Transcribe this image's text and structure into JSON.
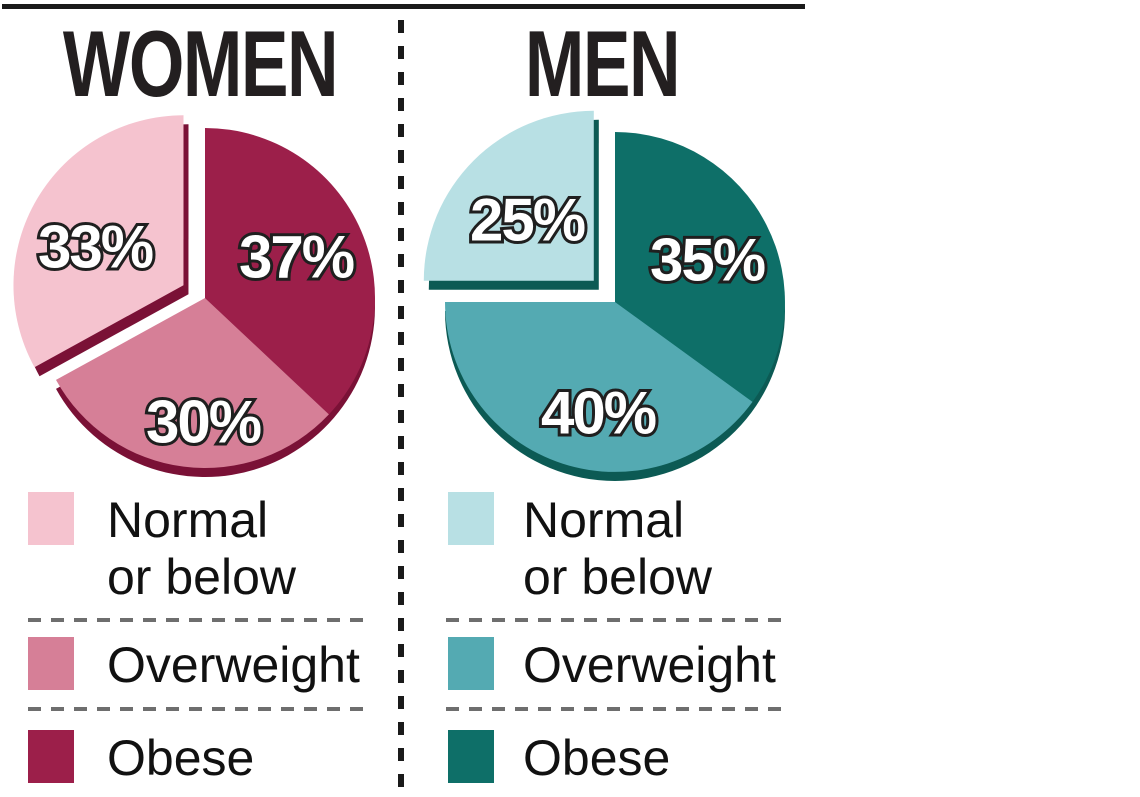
{
  "panels": [
    {
      "id": "women",
      "title": "WOMEN",
      "legend": [
        {
          "lines": [
            "Normal",
            "or below"
          ],
          "color": "#f5c3cf"
        },
        {
          "lines": [
            "Overweight"
          ],
          "color": "#d67f97"
        },
        {
          "lines": [
            "Obese"
          ],
          "color": "#9c1f4a"
        }
      ]
    },
    {
      "id": "men",
      "title": "MEN",
      "legend": [
        {
          "lines": [
            "Normal",
            "or below"
          ],
          "color": "#b8e0e4"
        },
        {
          "lines": [
            "Overweight"
          ],
          "color": "#54aab2"
        },
        {
          "lines": [
            "Obese"
          ],
          "color": "#0e6f68"
        }
      ]
    }
  ],
  "chart_data": [
    {
      "id": "women",
      "type": "pie",
      "title": "WOMEN",
      "units": "percent",
      "start_angle_deg": 0,
      "direction": "clockwise",
      "depth_color": "#7a1136",
      "explode_distance": 25,
      "categories": [
        "Obese",
        "Overweight",
        "Normal or below"
      ],
      "values": [
        37,
        30,
        33
      ],
      "slices": [
        {
          "label": "Obese",
          "value": 37,
          "display": "37%",
          "color": "#9c1f4a",
          "exploded": false,
          "label_xy": [
            91,
            -41
          ]
        },
        {
          "label": "Overweight",
          "value": 30,
          "display": "30%",
          "color": "#d67f97",
          "exploded": false,
          "label_xy": [
            -2,
            124
          ]
        },
        {
          "label": "Normal or below",
          "value": 33,
          "display": "33%",
          "color": "#f5c3cf",
          "exploded": true,
          "label_xy": [
            -110,
            -51
          ]
        }
      ]
    },
    {
      "id": "men",
      "type": "pie",
      "title": "MEN",
      "units": "percent",
      "start_angle_deg": 0,
      "direction": "clockwise",
      "depth_color": "#0c5a54",
      "explode_distance": 30,
      "categories": [
        "Obese",
        "Overweight",
        "Normal or below"
      ],
      "values": [
        35,
        40,
        25
      ],
      "slices": [
        {
          "label": "Obese",
          "value": 35,
          "display": "35%",
          "color": "#0e6f68",
          "exploded": false,
          "label_xy": [
            92,
            -42
          ]
        },
        {
          "label": "Overweight",
          "value": 40,
          "display": "40%",
          "color": "#54aab2",
          "exploded": false,
          "label_xy": [
            -17,
            111
          ]
        },
        {
          "label": "Normal or below",
          "value": 25,
          "display": "25%",
          "color": "#b8e0e4",
          "exploded": true,
          "label_xy": [
            -88,
            -82
          ]
        }
      ]
    }
  ]
}
